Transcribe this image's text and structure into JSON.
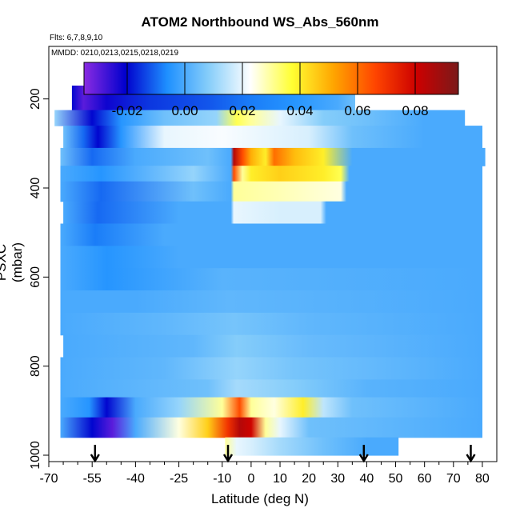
{
  "chart_data": {
    "type": "heatmap",
    "title": "ATOM2 Northbound WS_Abs_560nm",
    "subtitle_flights": "Flts: 6,7,8,9,10",
    "subtitle_dates": "MMDD: 0210,0213,0215,0218,0219",
    "xlabel": "Latitude (deg N)",
    "ylabel": "PSXC (mbar)",
    "xlim": [
      -70,
      85
    ],
    "ylim": [
      1000,
      0
    ],
    "x_ticks": [
      -70,
      -55,
      -40,
      -25,
      -10,
      0,
      10,
      20,
      30,
      40,
      50,
      60,
      70,
      80
    ],
    "y_ticks": [
      200,
      400,
      600,
      800,
      1000
    ],
    "colorbar": {
      "range": [
        -0.035,
        0.095
      ],
      "ticks": [
        -0.02,
        0.0,
        0.02,
        0.04,
        0.06,
        0.08
      ],
      "tick_labels": [
        "-0.02",
        "0.00",
        "0.02",
        "0.04",
        "0.06",
        "0.08"
      ],
      "colors": [
        "#8a2be2",
        "#0000cd",
        "#1e90ff",
        "#87cefa",
        "#ffffff",
        "#ffff33",
        "#ffa500",
        "#ff4500",
        "#cc0000",
        "#7a1a1a"
      ]
    },
    "flight_marker_latitudes": [
      -54,
      -8,
      39,
      76
    ],
    "layers": [
      {
        "p_top": 170,
        "p_bot": 225,
        "x0": -62,
        "x1": 36,
        "points": [
          [
            -62,
            -0.02
          ],
          [
            -58,
            -0.03
          ],
          [
            -50,
            -0.022
          ],
          [
            -35,
            -0.015
          ],
          [
            -15,
            -0.012
          ],
          [
            0,
            -0.008
          ],
          [
            15,
            -0.005
          ],
          [
            30,
            0.0
          ],
          [
            36,
            0.005
          ]
        ]
      },
      {
        "p_top": 225,
        "p_bot": 260,
        "x0": -68,
        "x1": 74,
        "points": [
          [
            -68,
            0.01
          ],
          [
            -55,
            -0.02
          ],
          [
            -45,
            -0.005
          ],
          [
            -30,
            0.005
          ],
          [
            -12,
            0.01
          ],
          [
            -5,
            0.035
          ],
          [
            0,
            0.03
          ],
          [
            10,
            0.02
          ],
          [
            25,
            0.008
          ],
          [
            40,
            0.005
          ],
          [
            60,
            0.0
          ],
          [
            74,
            0.0
          ]
        ]
      },
      {
        "p_top": 260,
        "p_bot": 310,
        "x0": -65,
        "x1": 80,
        "points": [
          [
            -65,
            0.005
          ],
          [
            -58,
            -0.01
          ],
          [
            -53,
            -0.02
          ],
          [
            -45,
            -0.005
          ],
          [
            -30,
            0.02
          ],
          [
            -10,
            0.022
          ],
          [
            5,
            0.02
          ],
          [
            20,
            0.018
          ],
          [
            35,
            0.005
          ],
          [
            60,
            0.0
          ],
          [
            80,
            0.0
          ]
        ]
      },
      {
        "p_top": 310,
        "p_bot": 350,
        "x0": -66,
        "x1": 81,
        "points": [
          [
            -66,
            0.005
          ],
          [
            -55,
            -0.01
          ],
          [
            -40,
            0.0
          ],
          [
            -15,
            0.005
          ],
          [
            -7,
            0.0
          ],
          [
            -6,
            0.085
          ],
          [
            -3,
            0.065
          ],
          [
            0,
            0.05
          ],
          [
            5,
            0.04
          ],
          [
            8,
            0.06
          ],
          [
            15,
            0.048
          ],
          [
            25,
            0.04
          ],
          [
            35,
            0.0
          ],
          [
            55,
            0.0
          ],
          [
            81,
            0.0
          ]
        ]
      },
      {
        "p_top": 350,
        "p_bot": 385,
        "x0": -66,
        "x1": 80,
        "points": [
          [
            -66,
            0.0
          ],
          [
            -52,
            -0.005
          ],
          [
            -20,
            0.01
          ],
          [
            -7,
            0.0
          ],
          [
            -6,
            0.065
          ],
          [
            -3,
            0.03
          ],
          [
            0,
            0.04
          ],
          [
            10,
            0.045
          ],
          [
            25,
            0.04
          ],
          [
            31,
            0.035
          ],
          [
            34,
            0.0
          ],
          [
            80,
            0.0
          ]
        ]
      },
      {
        "p_top": 385,
        "p_bot": 430,
        "x0": -66,
        "x1": 80,
        "points": [
          [
            -66,
            0.0
          ],
          [
            -52,
            -0.01
          ],
          [
            -20,
            0.005
          ],
          [
            -7,
            0.0
          ],
          [
            -6,
            0.03
          ],
          [
            10,
            0.028
          ],
          [
            31,
            0.025
          ],
          [
            33,
            0.0
          ],
          [
            80,
            0.0
          ]
        ]
      },
      {
        "p_top": 430,
        "p_bot": 480,
        "x0": -65,
        "x1": 80,
        "points": [
          [
            -65,
            0.0
          ],
          [
            -53,
            -0.01
          ],
          [
            -25,
            0.0
          ],
          [
            -7,
            0.0
          ],
          [
            -6,
            0.02
          ],
          [
            10,
            0.018
          ],
          [
            24,
            0.018
          ],
          [
            26,
            0.0
          ],
          [
            80,
            0.0
          ]
        ]
      },
      {
        "p_top": 480,
        "p_bot": 530,
        "x0": -66,
        "x1": 80,
        "points": [
          [
            -66,
            0.0
          ],
          [
            -54,
            -0.008
          ],
          [
            -30,
            0.0
          ],
          [
            0,
            0.0
          ],
          [
            80,
            0.0
          ]
        ]
      },
      {
        "p_top": 530,
        "p_bot": 580,
        "x0": -66,
        "x1": 80,
        "points": [
          [
            -66,
            0.0
          ],
          [
            -50,
            -0.005
          ],
          [
            -25,
            0.0
          ],
          [
            80,
            0.0
          ]
        ]
      },
      {
        "p_top": 580,
        "p_bot": 630,
        "x0": -66,
        "x1": 80,
        "points": [
          [
            -66,
            0.0
          ],
          [
            -50,
            -0.005
          ],
          [
            -10,
            0.002
          ],
          [
            80,
            0.0
          ]
        ]
      },
      {
        "p_top": 630,
        "p_bot": 680,
        "x0": -66,
        "x1": 80,
        "points": [
          [
            -66,
            0.0
          ],
          [
            -40,
            0.0
          ],
          [
            -8,
            0.003
          ],
          [
            80,
            0.0
          ]
        ]
      },
      {
        "p_top": 680,
        "p_bot": 730,
        "x0": -66,
        "x1": 80,
        "points": [
          [
            -66,
            0.0
          ],
          [
            -30,
            0.003
          ],
          [
            -6,
            0.006
          ],
          [
            20,
            0.003
          ],
          [
            80,
            0.0
          ]
        ]
      },
      {
        "p_top": 730,
        "p_bot": 780,
        "x0": -65,
        "x1": 80,
        "points": [
          [
            -65,
            0.0
          ],
          [
            -20,
            0.003
          ],
          [
            -5,
            0.008
          ],
          [
            20,
            0.004
          ],
          [
            80,
            0.0
          ]
        ]
      },
      {
        "p_top": 780,
        "p_bot": 830,
        "x0": -66,
        "x1": 80,
        "points": [
          [
            -66,
            0.0
          ],
          [
            -30,
            0.003
          ],
          [
            -5,
            0.01
          ],
          [
            15,
            0.006
          ],
          [
            80,
            0.0
          ]
        ]
      },
      {
        "p_top": 830,
        "p_bot": 870,
        "x0": -66,
        "x1": 80,
        "points": [
          [
            -66,
            0.0
          ],
          [
            -45,
            0.002
          ],
          [
            -15,
            0.005
          ],
          [
            -5,
            0.012
          ],
          [
            15,
            0.008
          ],
          [
            40,
            0.002
          ],
          [
            80,
            0.0
          ]
        ]
      },
      {
        "p_top": 870,
        "p_bot": 915,
        "x0": -66,
        "x1": 80,
        "points": [
          [
            -66,
            0.0
          ],
          [
            -56,
            -0.005
          ],
          [
            -50,
            -0.02
          ],
          [
            -40,
            0.0
          ],
          [
            -25,
            0.01
          ],
          [
            -10,
            0.03
          ],
          [
            -4,
            0.065
          ],
          [
            0,
            0.03
          ],
          [
            8,
            0.025
          ],
          [
            18,
            0.04
          ],
          [
            25,
            0.015
          ],
          [
            35,
            0.005
          ],
          [
            80,
            0.0
          ]
        ]
      },
      {
        "p_top": 915,
        "p_bot": 960,
        "x0": -66,
        "x1": 80,
        "points": [
          [
            -66,
            0.0
          ],
          [
            -55,
            -0.02
          ],
          [
            -48,
            -0.03
          ],
          [
            -40,
            0.0
          ],
          [
            -25,
            0.025
          ],
          [
            -15,
            0.045
          ],
          [
            -8,
            0.07
          ],
          [
            -4,
            0.085
          ],
          [
            0,
            0.08
          ],
          [
            5,
            0.03
          ],
          [
            10,
            0.02
          ],
          [
            20,
            0.005
          ],
          [
            80,
            0.0
          ]
        ]
      },
      {
        "p_top": 960,
        "p_bot": 1000,
        "x0": -9,
        "x1": 51,
        "points": [
          [
            -9,
            0.03
          ],
          [
            -5,
            0.02
          ],
          [
            0,
            0.018
          ],
          [
            10,
            0.012
          ],
          [
            25,
            0.005
          ],
          [
            40,
            0.0
          ],
          [
            51,
            0.0
          ]
        ]
      }
    ]
  }
}
